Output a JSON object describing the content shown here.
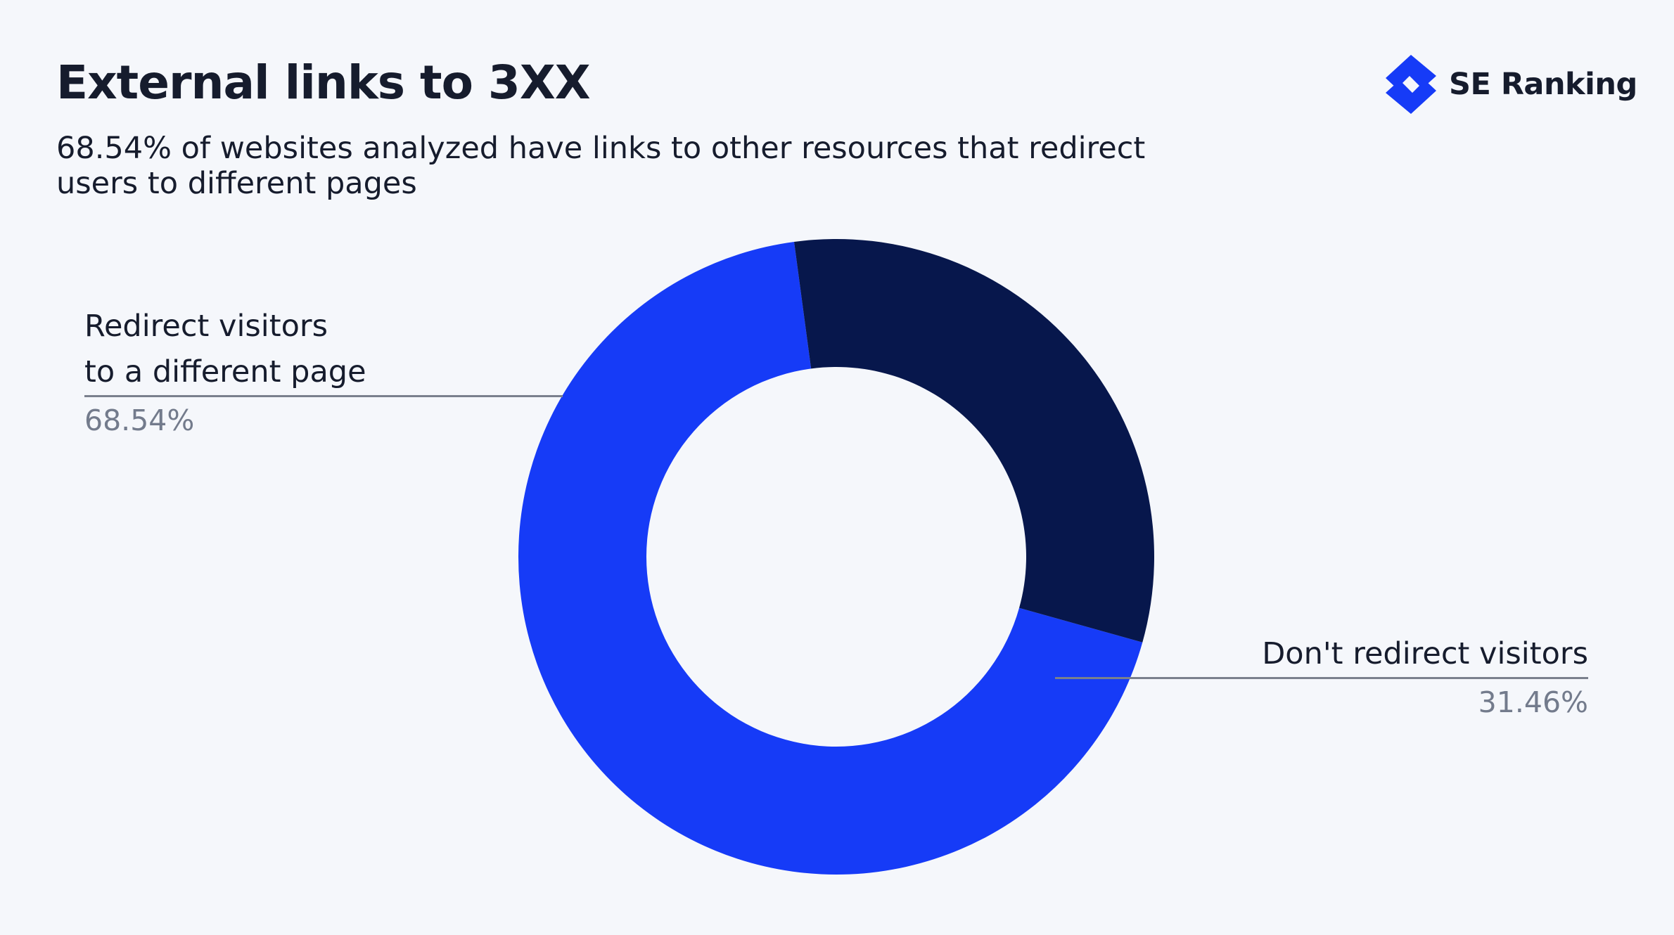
{
  "header": {
    "title": "External links to 3XX",
    "subtitle": "68.54% of websites analyzed have links to other resources that redirect users to different pages"
  },
  "brand": {
    "name": "SE Ranking",
    "logo_icon": "lightning-bolt-icon",
    "logo_color": "#163bf7"
  },
  "labels": {
    "redirect": {
      "name_line1": "Redirect visitors",
      "name_line2": "to a different page",
      "value": "68.54%"
    },
    "no_redirect": {
      "name": "Don't redirect visitors",
      "value": "31.46%"
    }
  },
  "chart_data": {
    "type": "pie",
    "variant": "donut",
    "title": "External links to 3XX",
    "categories": [
      "Redirect visitors to a different page",
      "Don't redirect visitors"
    ],
    "values": [
      68.54,
      31.46
    ],
    "unit": "%",
    "colors": [
      "#163bf7",
      "#07174c"
    ],
    "legend": "none",
    "data_labels": [
      "68.54%",
      "31.46%"
    ]
  }
}
